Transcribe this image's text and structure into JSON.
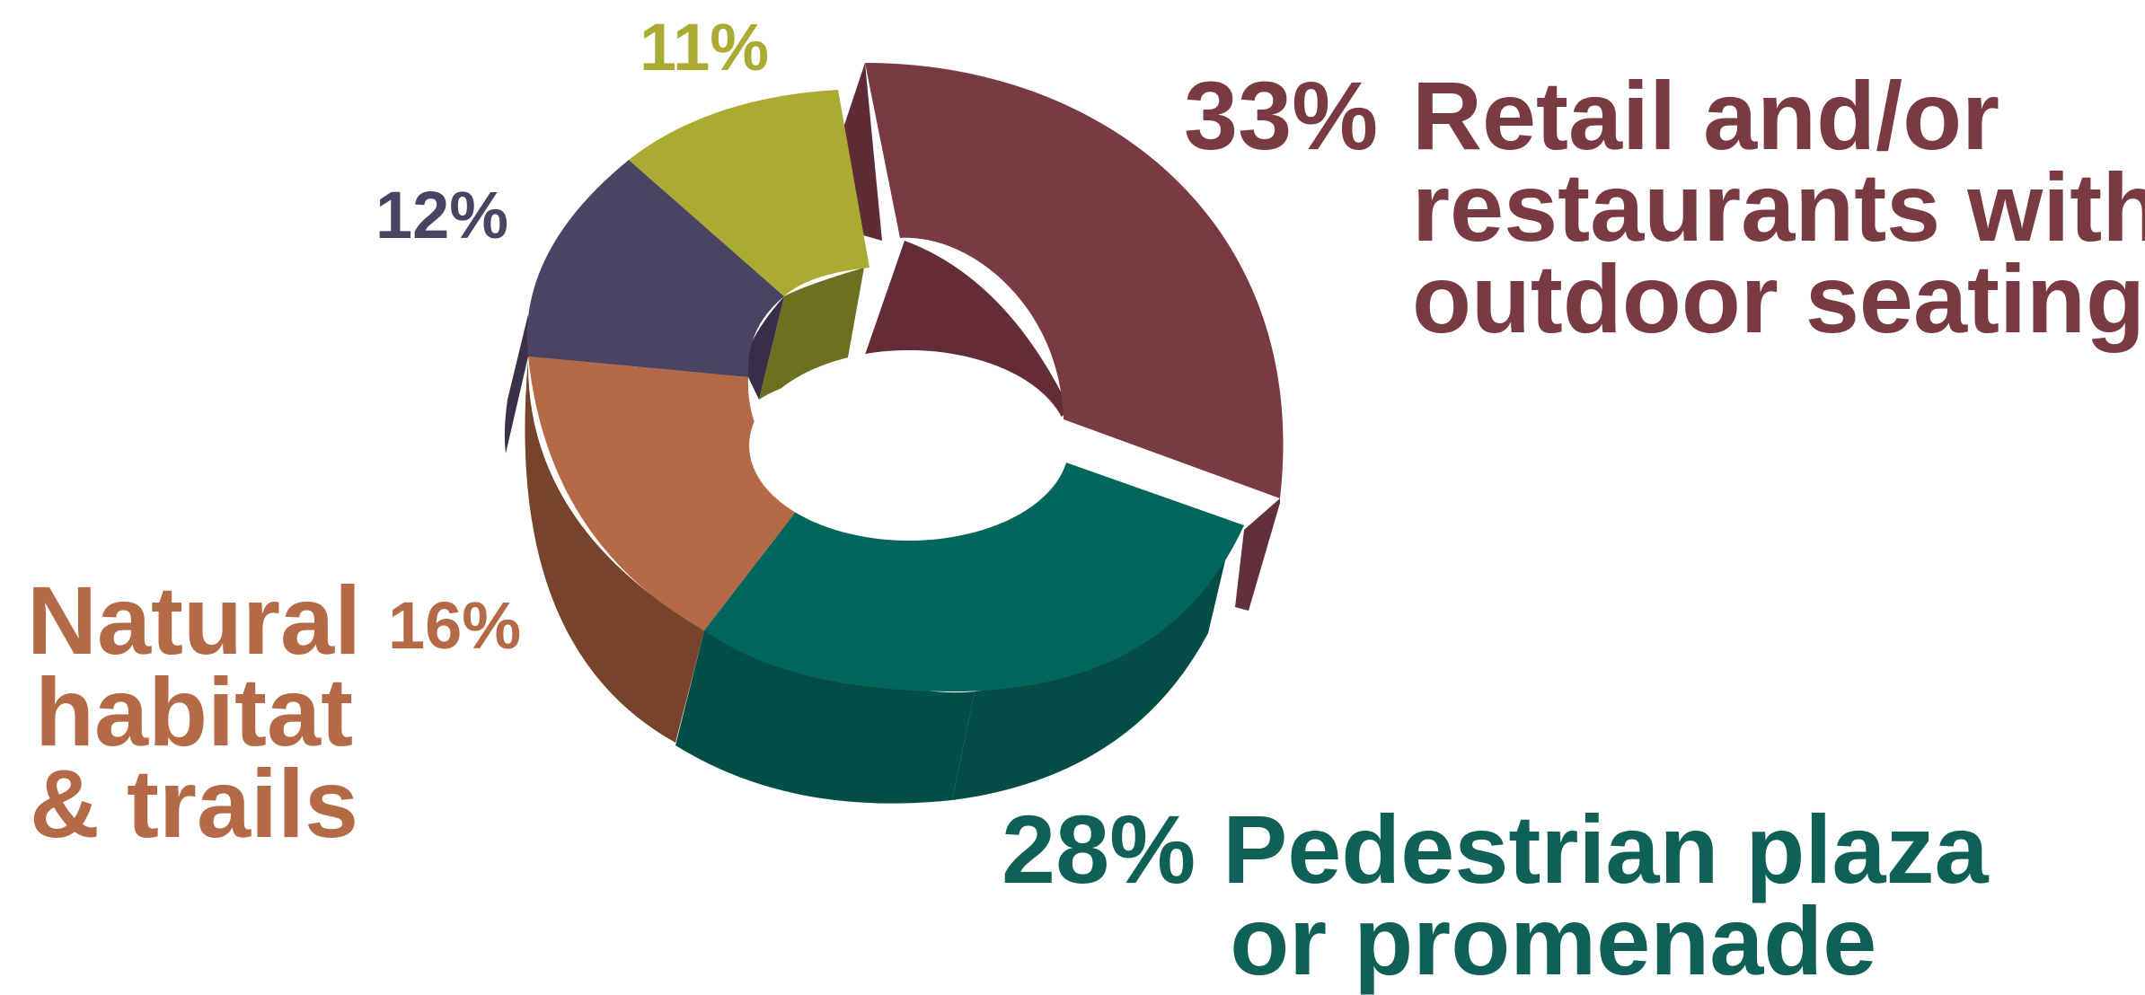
{
  "chart_data": {
    "type": "pie",
    "style": "3d-donut",
    "slices": [
      {
        "key": "retail",
        "label": "Retail and/or restaurants with outdoor seating",
        "value": 33,
        "value_label": "33%",
        "color": "#7a3a42",
        "label_lines": [
          "Retail and/or",
          "restaurants with",
          "outdoor seating"
        ]
      },
      {
        "key": "pedestrian",
        "label": "Pedestrian plaza or promenade",
        "value": 28,
        "value_label": "28%",
        "color": "#02665c",
        "label_lines": [
          "Pedestrian plaza",
          "or promenade"
        ]
      },
      {
        "key": "natural",
        "label": "Natural habitat & trails",
        "value": 16,
        "value_label": "16%",
        "color": "#b56a47",
        "label_lines": [
          "Natural",
          "habitat",
          "& trails"
        ]
      },
      {
        "key": "purple",
        "label": "",
        "value": 12,
        "value_label": "12%",
        "color": "#4b4362"
      },
      {
        "key": "olive",
        "label": "",
        "value": 11,
        "value_label": "11%",
        "color": "#abab34"
      }
    ]
  }
}
